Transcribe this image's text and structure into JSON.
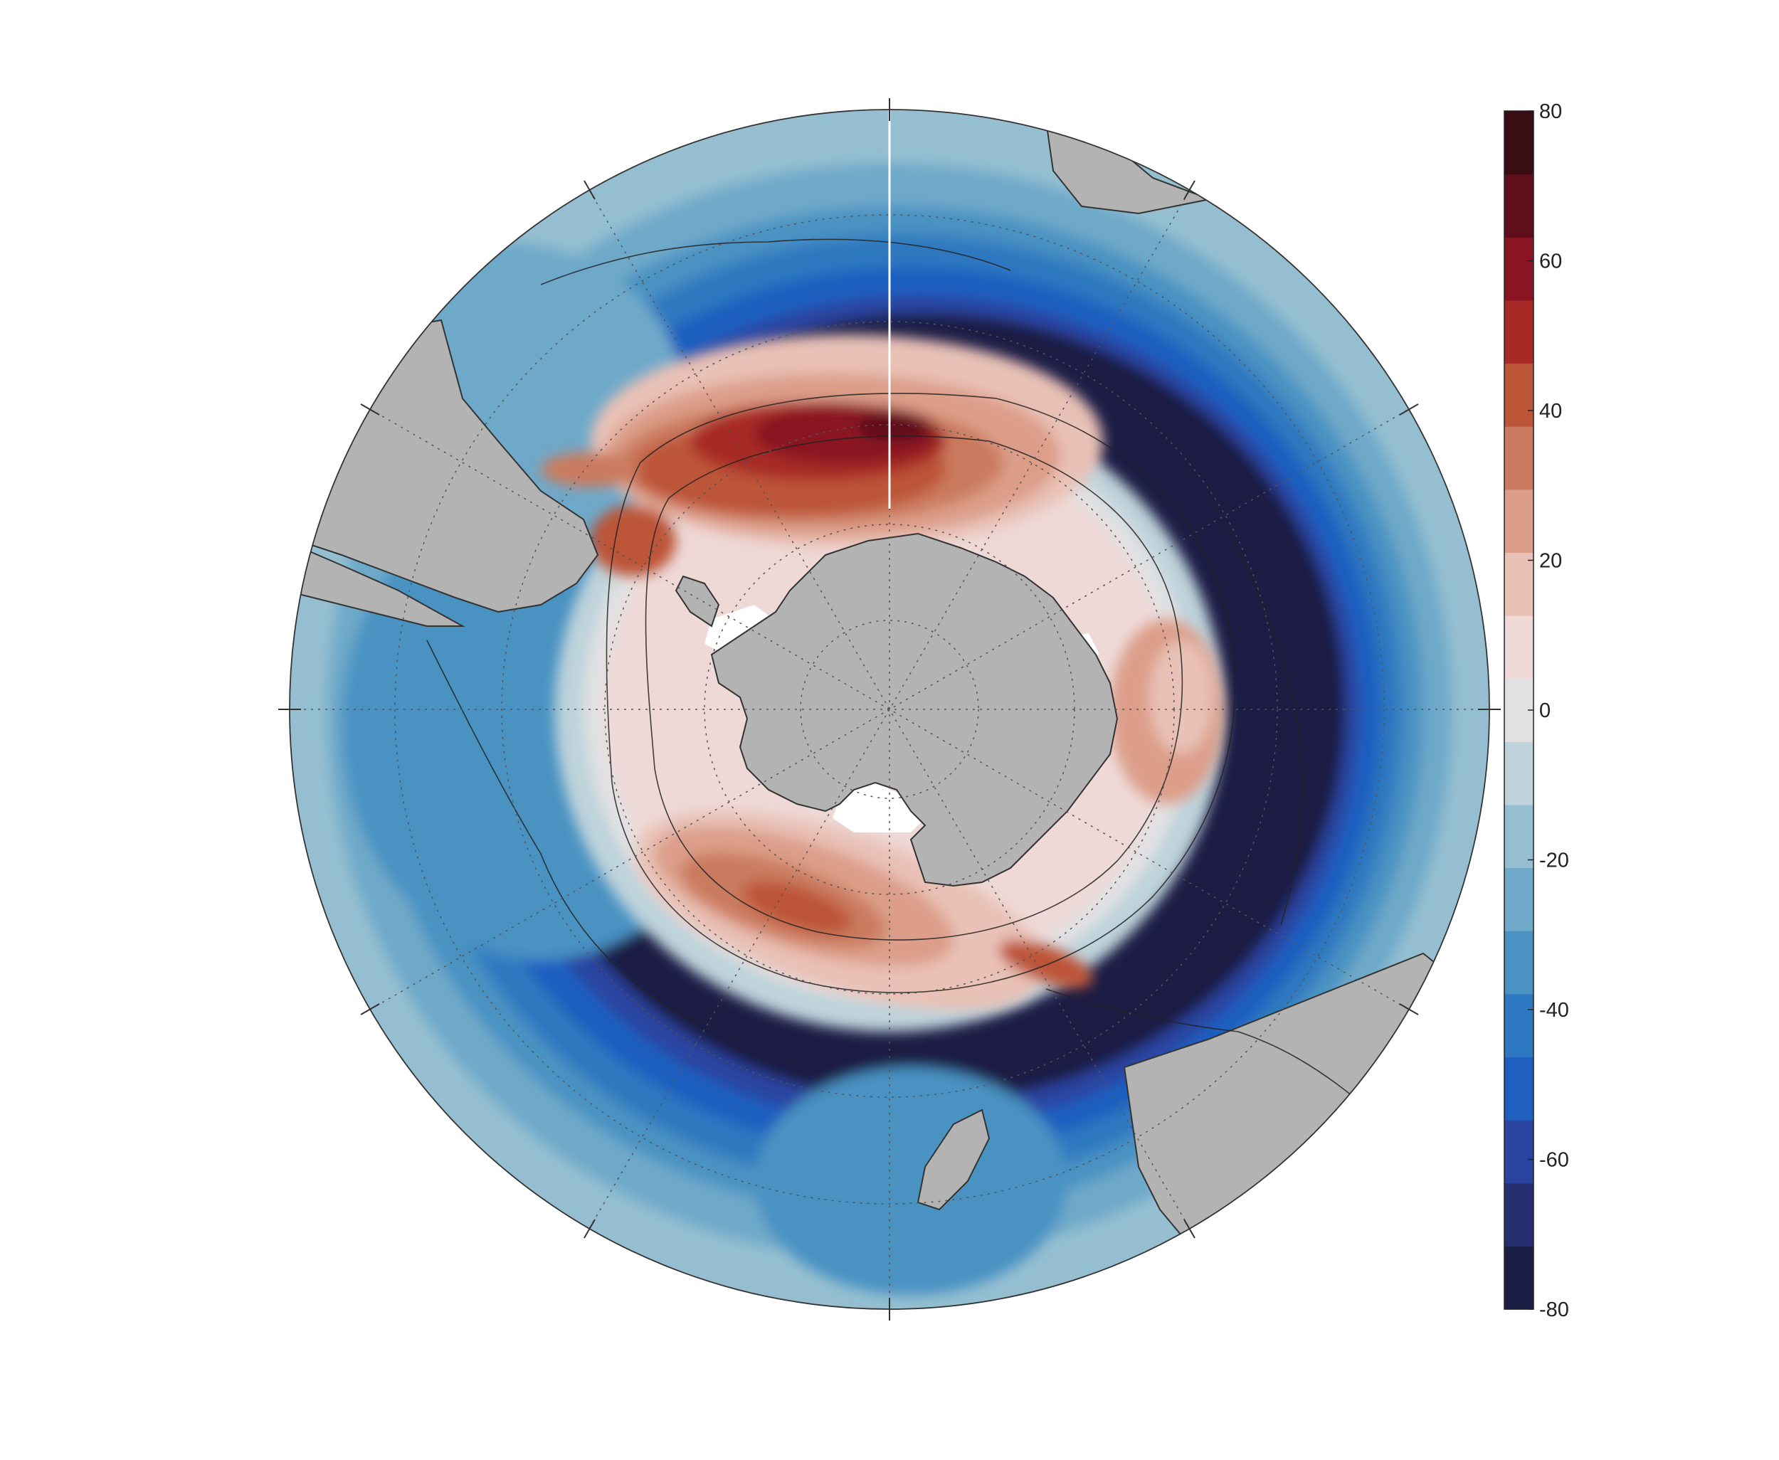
{
  "colorbar": {
    "ticks": [
      "80",
      "60",
      "40",
      "20",
      "0",
      "-20",
      "-40",
      "-60",
      "-80"
    ],
    "min": -80,
    "max": 80,
    "step": 10,
    "colors": [
      "#1b1e45",
      "#252e6e",
      "#2b44a0",
      "#1f5fc0",
      "#2d78c0",
      "#4a92c2",
      "#6ea9c9",
      "#95bfd1",
      "#bed3db",
      "#e1e1e3",
      "#eed9d7",
      "#e9c1b6",
      "#dc9e89",
      "#ca7a5e",
      "#bd5537",
      "#a82a26",
      "#8a1424",
      "#5e0f1b",
      "#3a0d12"
    ]
  },
  "map": {
    "projection": "south-polar-stereographic",
    "land_color": "#b3b3b3",
    "ice_shelf_color": "#ffffff"
  },
  "colors": {
    "outline": "#333333",
    "graticule": "#555555",
    "background": "#ffffff"
  }
}
